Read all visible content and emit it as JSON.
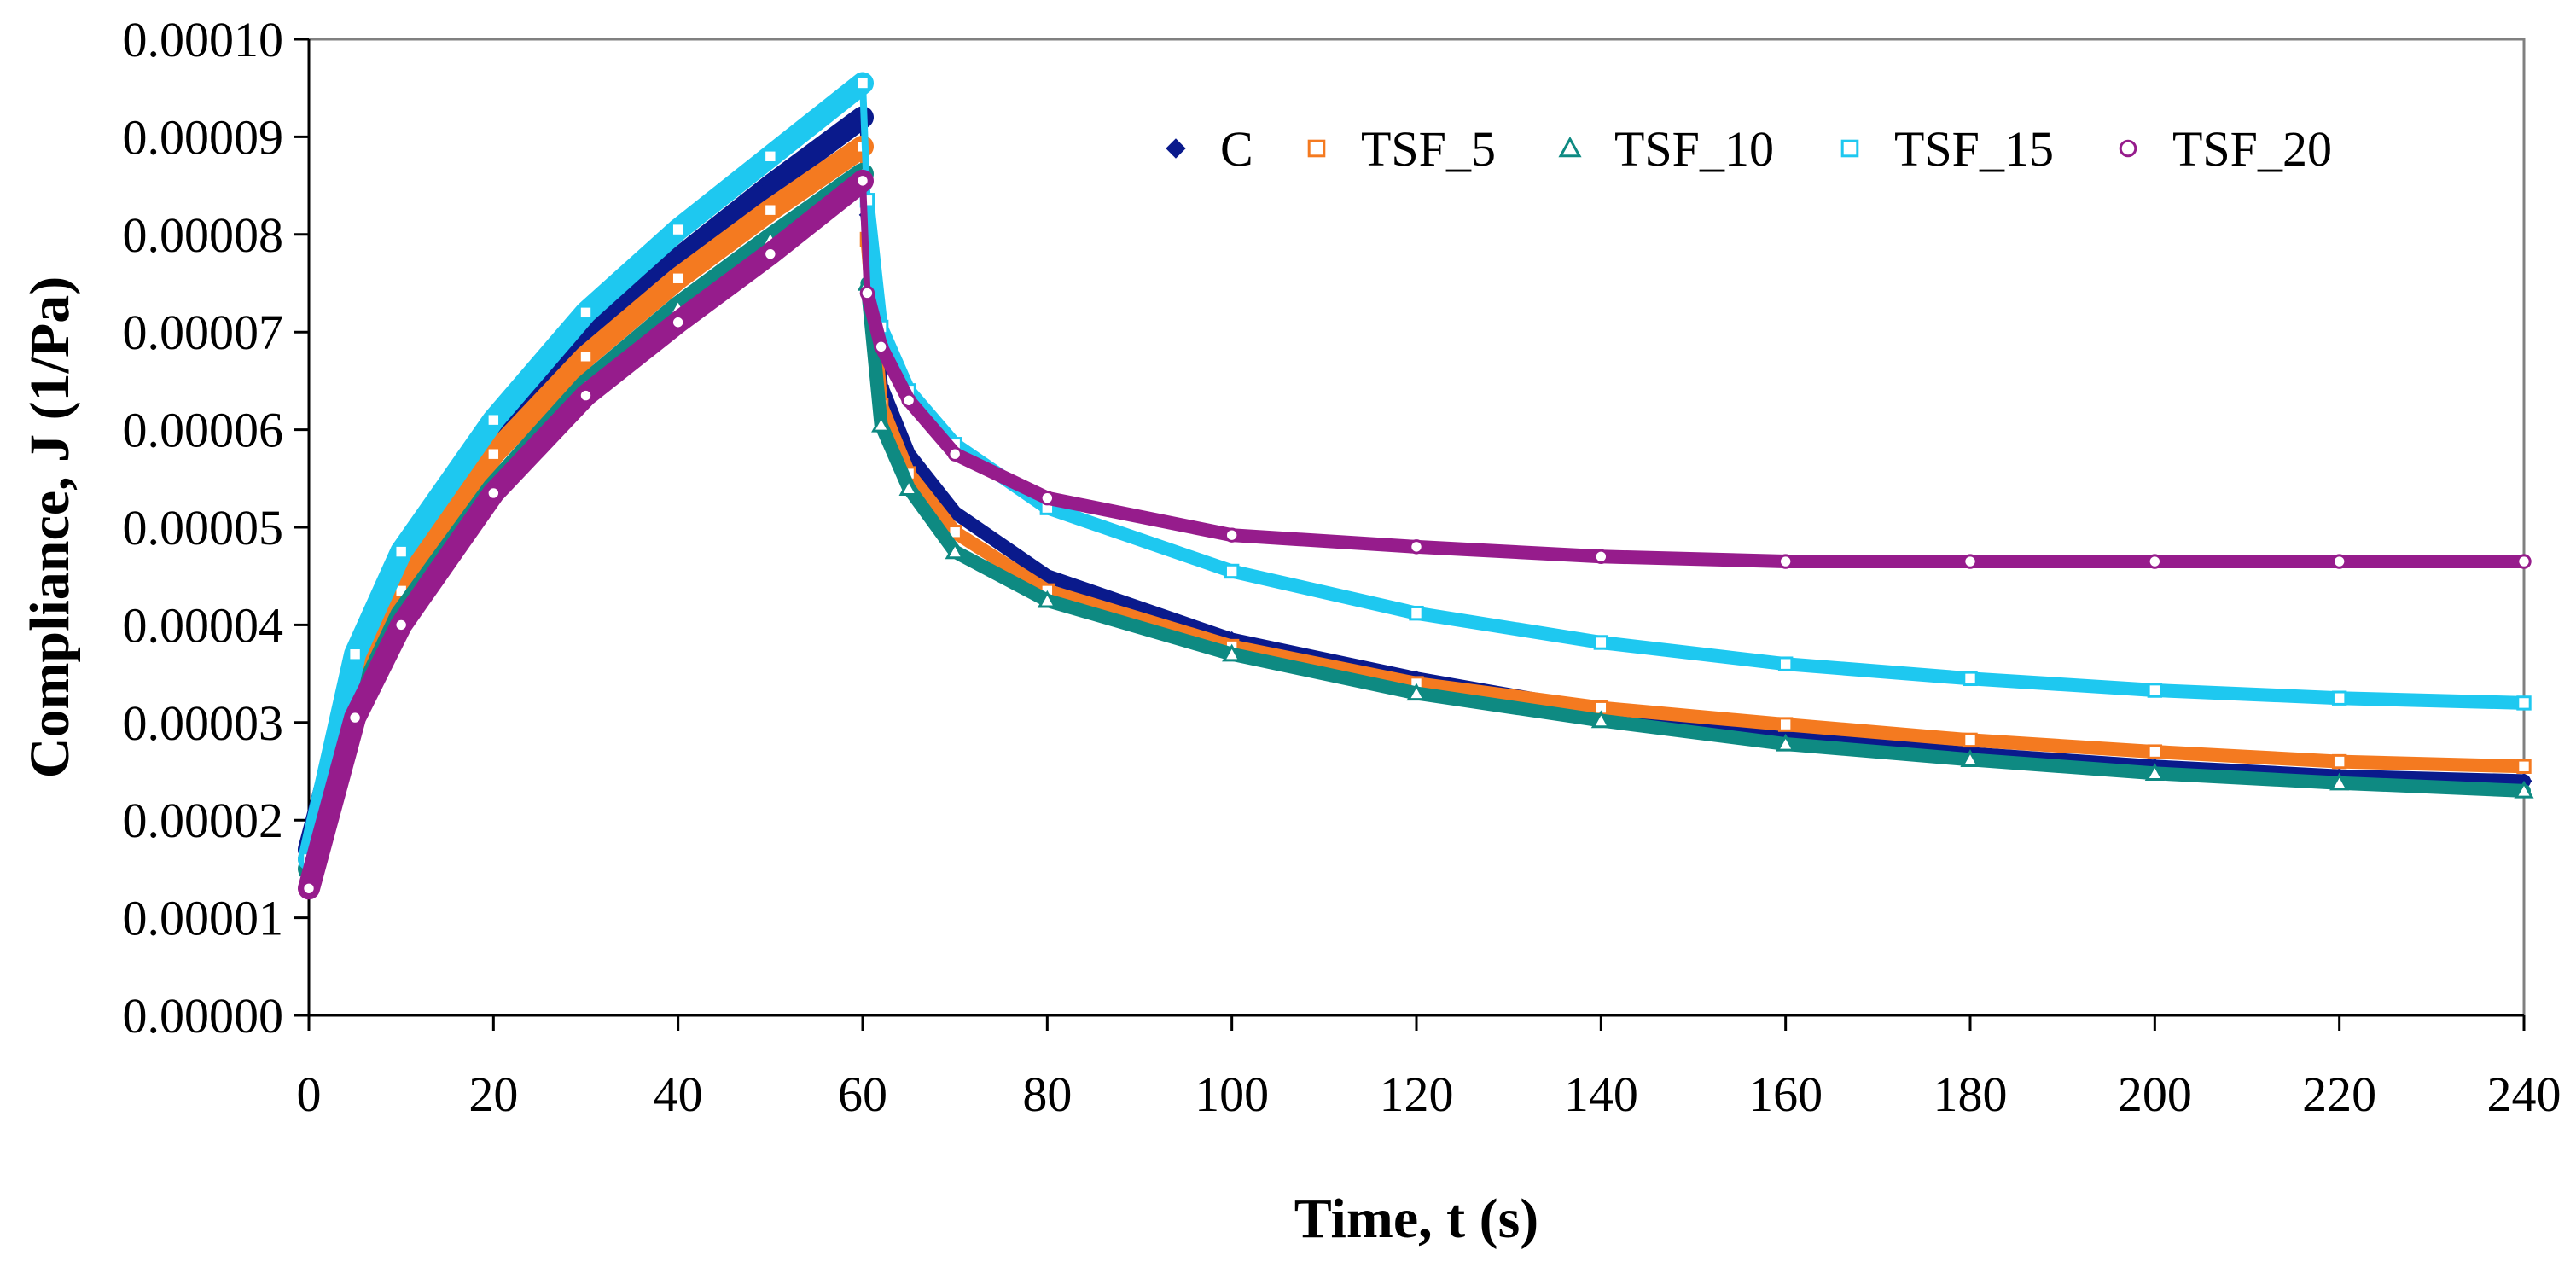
{
  "chart_data": {
    "type": "scatter",
    "title": "",
    "xlabel": "Time, t (s)",
    "ylabel": "Compliance, J (1/Pa)",
    "xlim": [
      0,
      240
    ],
    "ylim": [
      0,
      0.0001
    ],
    "x_ticks": [
      0,
      20,
      40,
      60,
      80,
      100,
      120,
      140,
      160,
      180,
      200,
      220,
      240
    ],
    "x_tick_labels": [
      "0",
      "20",
      "40",
      "60",
      "80",
      "100",
      "120",
      "140",
      "160",
      "180",
      "200",
      "220",
      "240"
    ],
    "y_ticks": [
      0,
      1e-05,
      2e-05,
      3e-05,
      4e-05,
      5e-05,
      6e-05,
      7e-05,
      8e-05,
      9e-05,
      0.0001
    ],
    "y_tick_labels": [
      "0.00000",
      "0.00001",
      "0.00002",
      "0.00003",
      "0.00004",
      "0.00005",
      "0.00006",
      "0.00007",
      "0.00008",
      "0.00009",
      "0.00010"
    ],
    "grid": false,
    "legend_position": "top-right",
    "series": [
      {
        "name": "C",
        "marker": "diamond",
        "color": "#0a1a8c",
        "x": [
          0,
          5,
          10,
          20,
          30,
          40,
          50,
          60,
          60.5,
          62,
          65,
          70,
          80,
          100,
          120,
          140,
          160,
          180,
          200,
          220,
          240
        ],
        "y": [
          1.7e-05,
          3.5e-05,
          4.5e-05,
          5.88e-05,
          6.95e-05,
          7.75e-05,
          8.5e-05,
          9.2e-05,
          8.2e-05,
          6.45e-05,
          5.75e-05,
          5.15e-05,
          4.5e-05,
          3.85e-05,
          3.45e-05,
          3.12e-05,
          2.85e-05,
          2.68e-05,
          2.55e-05,
          2.45e-05,
          2.4e-05
        ]
      },
      {
        "name": "TSF_5",
        "marker": "square",
        "color": "#f47a20",
        "x": [
          0,
          5,
          10,
          20,
          30,
          40,
          50,
          60,
          60.5,
          62,
          65,
          70,
          80,
          100,
          120,
          140,
          160,
          180,
          200,
          220,
          240
        ],
        "y": [
          1.6e-05,
          3.35e-05,
          4.35e-05,
          5.75e-05,
          6.75e-05,
          7.55e-05,
          8.25e-05,
          8.9e-05,
          7.95e-05,
          6.25e-05,
          5.55e-05,
          4.95e-05,
          4.35e-05,
          3.78e-05,
          3.4e-05,
          3.15e-05,
          2.98e-05,
          2.82e-05,
          2.7e-05,
          2.6e-05,
          2.55e-05
        ]
      },
      {
        "name": "TSF_10",
        "marker": "triangle",
        "color": "#0e8a82",
        "x": [
          0,
          5,
          10,
          20,
          30,
          40,
          50,
          60,
          60.5,
          62,
          65,
          70,
          80,
          100,
          120,
          140,
          160,
          180,
          200,
          220,
          240
        ],
        "y": [
          1.5e-05,
          3.1e-05,
          4.1e-05,
          5.4e-05,
          6.45e-05,
          7.25e-05,
          7.95e-05,
          8.62e-05,
          7.5e-05,
          6.05e-05,
          5.4e-05,
          4.75e-05,
          4.25e-05,
          3.7e-05,
          3.3e-05,
          3.02e-05,
          2.78e-05,
          2.62e-05,
          2.48e-05,
          2.38e-05,
          2.3e-05
        ]
      },
      {
        "name": "TSF_15",
        "marker": "square",
        "color": "#1ec8f0",
        "x": [
          0,
          5,
          10,
          20,
          30,
          40,
          50,
          60,
          60.5,
          62,
          65,
          70,
          80,
          100,
          120,
          140,
          160,
          180,
          200,
          220,
          240
        ],
        "y": [
          1.6e-05,
          3.7e-05,
          4.75e-05,
          6.1e-05,
          7.2e-05,
          8.05e-05,
          8.8e-05,
          9.55e-05,
          8.35e-05,
          7.05e-05,
          6.4e-05,
          5.85e-05,
          5.2e-05,
          4.55e-05,
          4.12e-05,
          3.82e-05,
          3.6e-05,
          3.45e-05,
          3.33e-05,
          3.25e-05,
          3.2e-05
        ]
      },
      {
        "name": "TSF_20",
        "marker": "circle",
        "color": "#961c8c",
        "x": [
          0,
          5,
          10,
          20,
          30,
          40,
          50,
          60,
          60.5,
          62,
          65,
          70,
          80,
          100,
          120,
          140,
          160,
          180,
          200,
          220,
          240
        ],
        "y": [
          1.3e-05,
          3.05e-05,
          4e-05,
          5.35e-05,
          6.35e-05,
          7.1e-05,
          7.8e-05,
          8.55e-05,
          7.4e-05,
          6.85e-05,
          6.3e-05,
          5.75e-05,
          5.3e-05,
          4.92e-05,
          4.8e-05,
          4.7e-05,
          4.65e-05,
          4.65e-05,
          4.65e-05,
          4.65e-05,
          4.65e-05
        ]
      }
    ]
  }
}
